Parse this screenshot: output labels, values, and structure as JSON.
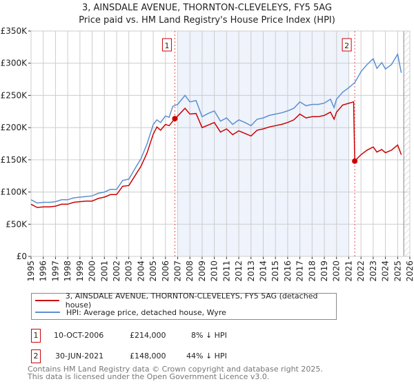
{
  "title": "3, AINSDALE AVENUE, THORNTON-CLEVELEYS, FY5 5AG",
  "subtitle": "Price paid vs. HM Land Registry's House Price Index (HPI)",
  "chart_data": {
    "type": "line",
    "title": "3, AINSDALE AVENUE, THORNTON-CLEVELEYS, FY5 5AG — Price paid vs. HM Land Registry's House Price Index (HPI)",
    "xlim": [
      1995,
      2026
    ],
    "ylim": [
      0,
      350000
    ],
    "x_ticks": [
      "1995",
      "1996",
      "1997",
      "1998",
      "1999",
      "2000",
      "2001",
      "2002",
      "2003",
      "2004",
      "2005",
      "2006",
      "2007",
      "2008",
      "2009",
      "2010",
      "2011",
      "2012",
      "2013",
      "2014",
      "2015",
      "2016",
      "2017",
      "2018",
      "2019",
      "2020",
      "2021",
      "2022",
      "2023",
      "2024",
      "2025",
      "2026"
    ],
    "y_ticks": [
      {
        "v": 0,
        "label": "£0"
      },
      {
        "v": 50000,
        "label": "£50K"
      },
      {
        "v": 100000,
        "label": "£100K"
      },
      {
        "v": 150000,
        "label": "£150K"
      },
      {
        "v": 200000,
        "label": "£200K"
      },
      {
        "v": 250000,
        "label": "£250K"
      },
      {
        "v": 300000,
        "label": "£300K"
      },
      {
        "v": 350000,
        "label": "£350K"
      }
    ],
    "grid": true,
    "shaded_range": [
      2007.0,
      2021.0
    ],
    "future_hatch_from": 2025.5,
    "series": [
      {
        "name": "3, AINSDALE AVENUE, THORNTON-CLEVELEYS, FY5 5AG (detached house)",
        "color": "#cc0000",
        "points": [
          [
            1995,
            81
          ],
          [
            1995.5,
            76
          ],
          [
            1996,
            77
          ],
          [
            1996.5,
            77
          ],
          [
            1997,
            78
          ],
          [
            1997.5,
            81
          ],
          [
            1998,
            81
          ],
          [
            1998.5,
            84
          ],
          [
            1999,
            85
          ],
          [
            1999.5,
            86
          ],
          [
            2000,
            86
          ],
          [
            2000.5,
            90
          ],
          [
            2001,
            92
          ],
          [
            2001.5,
            96
          ],
          [
            2002,
            96
          ],
          [
            2002.5,
            109
          ],
          [
            2003,
            110
          ],
          [
            2003.5,
            125
          ],
          [
            2004,
            140
          ],
          [
            2004.5,
            161
          ],
          [
            2005,
            190
          ],
          [
            2005.3,
            201
          ],
          [
            2005.6,
            196
          ],
          [
            2006,
            205
          ],
          [
            2006.3,
            203
          ],
          [
            2006.77,
            214
          ],
          [
            2007,
            218
          ],
          [
            2007.6,
            230
          ],
          [
            2008,
            221
          ],
          [
            2008.5,
            222
          ],
          [
            2009,
            200
          ],
          [
            2009.5,
            204
          ],
          [
            2010,
            208
          ],
          [
            2010.5,
            193
          ],
          [
            2011,
            198
          ],
          [
            2011.5,
            189
          ],
          [
            2012,
            195
          ],
          [
            2012.5,
            191
          ],
          [
            2013,
            187
          ],
          [
            2013.5,
            196
          ],
          [
            2014,
            198
          ],
          [
            2014.5,
            201
          ],
          [
            2015,
            203
          ],
          [
            2015.5,
            205
          ],
          [
            2016,
            208
          ],
          [
            2016.5,
            212
          ],
          [
            2017,
            221
          ],
          [
            2017.5,
            215
          ],
          [
            2018,
            217
          ],
          [
            2018.5,
            217
          ],
          [
            2019,
            219
          ],
          [
            2019.5,
            224
          ],
          [
            2019.8,
            213
          ],
          [
            2020,
            224
          ],
          [
            2020.5,
            235
          ],
          [
            2021.4,
            240
          ],
          [
            2021.49,
            148
          ],
          [
            2022,
            158
          ],
          [
            2022.5,
            165
          ],
          [
            2023,
            170
          ],
          [
            2023.3,
            162
          ],
          [
            2023.7,
            166
          ],
          [
            2024,
            161
          ],
          [
            2024.5,
            165
          ],
          [
            2025,
            173
          ],
          [
            2025.3,
            158
          ]
        ]
      },
      {
        "name": "HPI: Average price, detached house, Wyre",
        "color": "#5b8fd0",
        "points": [
          [
            1995,
            88
          ],
          [
            1995.5,
            83
          ],
          [
            1996,
            84
          ],
          [
            1996.5,
            84
          ],
          [
            1997,
            85
          ],
          [
            1997.5,
            88
          ],
          [
            1998,
            88
          ],
          [
            1998.5,
            91
          ],
          [
            1999,
            92
          ],
          [
            1999.5,
            93
          ],
          [
            2000,
            94
          ],
          [
            2000.5,
            98
          ],
          [
            2001,
            100
          ],
          [
            2001.5,
            104
          ],
          [
            2002,
            104
          ],
          [
            2002.5,
            118
          ],
          [
            2003,
            120
          ],
          [
            2003.5,
            136
          ],
          [
            2004,
            152
          ],
          [
            2004.5,
            175
          ],
          [
            2005,
            205
          ],
          [
            2005.3,
            212
          ],
          [
            2005.6,
            208
          ],
          [
            2006,
            218
          ],
          [
            2006.3,
            216
          ],
          [
            2006.6,
            233
          ],
          [
            2007,
            236
          ],
          [
            2007.6,
            250
          ],
          [
            2008,
            240
          ],
          [
            2008.5,
            242
          ],
          [
            2009,
            217
          ],
          [
            2009.5,
            222
          ],
          [
            2010,
            226
          ],
          [
            2010.5,
            210
          ],
          [
            2011,
            215
          ],
          [
            2011.5,
            205
          ],
          [
            2012,
            212
          ],
          [
            2012.5,
            208
          ],
          [
            2013,
            203
          ],
          [
            2013.5,
            213
          ],
          [
            2014,
            215
          ],
          [
            2014.5,
            219
          ],
          [
            2015,
            221
          ],
          [
            2015.5,
            223
          ],
          [
            2016,
            226
          ],
          [
            2016.5,
            230
          ],
          [
            2017,
            240
          ],
          [
            2017.5,
            234
          ],
          [
            2018,
            236
          ],
          [
            2018.5,
            236
          ],
          [
            2019,
            238
          ],
          [
            2019.5,
            244
          ],
          [
            2019.8,
            231
          ],
          [
            2020,
            244
          ],
          [
            2020.5,
            255
          ],
          [
            2021,
            262
          ],
          [
            2021.5,
            270
          ],
          [
            2022,
            287
          ],
          [
            2022.5,
            298
          ],
          [
            2023,
            307
          ],
          [
            2023.3,
            292
          ],
          [
            2023.7,
            301
          ],
          [
            2024,
            291
          ],
          [
            2024.5,
            298
          ],
          [
            2025,
            314
          ],
          [
            2025.3,
            285
          ]
        ]
      }
    ],
    "y_units": "thousands GBP in points",
    "sales": [
      {
        "label": "1",
        "x": 2006.77,
        "price": 214000
      },
      {
        "label": "2",
        "x": 2021.49,
        "price": 148000
      }
    ]
  },
  "legend": {
    "property": "3, AINSDALE AVENUE, THORNTON-CLEVELEYS, FY5 5AG (detached house)",
    "hpi": "HPI: Average price, detached house, Wyre"
  },
  "transactions": [
    {
      "num": "1",
      "date": "10-OCT-2006",
      "price": "£214,000",
      "hpi": "8% ↓ HPI"
    },
    {
      "num": "2",
      "date": "30-JUN-2021",
      "price": "£148,000",
      "hpi": "44% ↓ HPI"
    }
  ],
  "footer": {
    "line1": "Contains HM Land Registry data © Crown copyright and database right 2025.",
    "line2": "This data is licensed under the Open Government Licence v3.0."
  }
}
